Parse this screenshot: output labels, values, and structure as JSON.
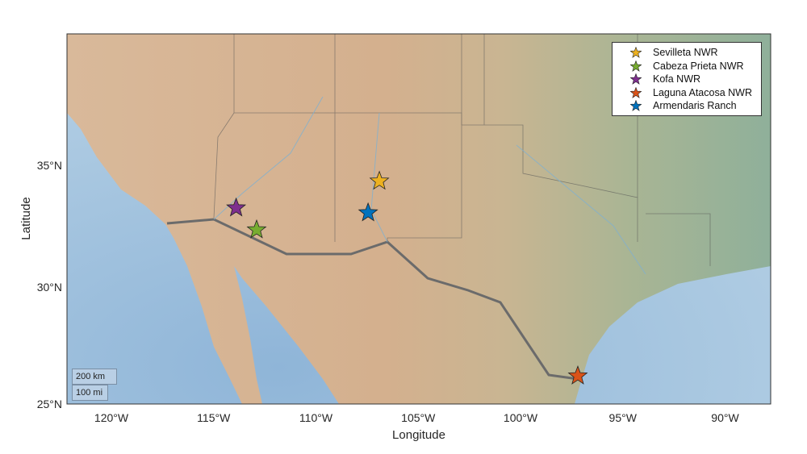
{
  "chart_data": {
    "type": "geoscatter",
    "basemap": "shaded relief",
    "xlabel": "Longitude",
    "ylabel": "Latitude",
    "lon_limits": [
      -122.2,
      -88.1
    ],
    "lat_limits": [
      25,
      40.5
    ],
    "lon_ticks": [
      "120°W",
      "115°W",
      "110°W",
      "105°W",
      "100°W",
      "95°W",
      "90°W"
    ],
    "lat_ticks": [
      "25°N",
      "30°N",
      "35°N"
    ],
    "legend_position": "top-right",
    "series": [
      {
        "name": "Sevilleta NWR",
        "lon": -106.9,
        "lat": 34.35,
        "color": "#EDB120"
      },
      {
        "name": "Cabeza Prieta NWR",
        "lon": -112.9,
        "lat": 32.35,
        "color": "#77AC30"
      },
      {
        "name": "Kofa NWR",
        "lon": -113.9,
        "lat": 33.25,
        "color": "#7E2F8E"
      },
      {
        "name": "Laguna Atacosa NWR",
        "lon": -97.2,
        "lat": 26.2,
        "color": "#D95319"
      },
      {
        "name": "Armendaris Ranch",
        "lon": -107.45,
        "lat": 33.05,
        "color": "#0072BD"
      }
    ],
    "scalebar": [
      "200 km",
      "100 mi"
    ]
  }
}
